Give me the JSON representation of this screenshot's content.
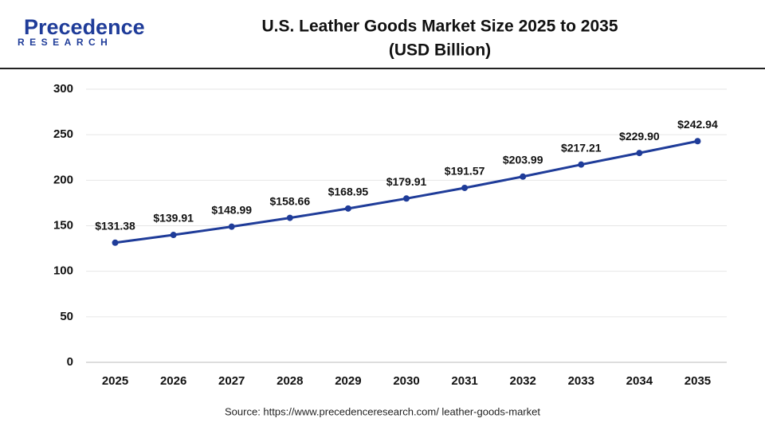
{
  "logo": {
    "name": "Precedence",
    "tagline": "RESEARCH"
  },
  "chart_data": {
    "type": "line",
    "title": "U.S. Leather Goods Market Size 2025 to 2035",
    "subtitle": "(USD Billion)",
    "categories": [
      "2025",
      "2026",
      "2027",
      "2028",
      "2029",
      "2030",
      "2031",
      "2032",
      "2033",
      "2034",
      "2035"
    ],
    "series": [
      {
        "name": "U.S. Leather Goods Market Size",
        "color": "#1f3c99",
        "values": [
          131.38,
          139.91,
          148.99,
          158.66,
          168.95,
          179.91,
          191.57,
          203.99,
          217.21,
          229.9,
          242.94
        ],
        "value_labels": [
          "$131.38",
          "$139.91",
          "$148.99",
          "$158.66",
          "$168.95",
          "$179.91",
          "$191.57",
          "$203.99",
          "$217.21",
          "$229.90",
          "$242.94"
        ]
      }
    ],
    "ylim": [
      0,
      300
    ],
    "yticks": [
      0,
      50,
      100,
      150,
      200,
      250,
      300
    ],
    "grid": true,
    "source": "Source: https://www.precedenceresearch.com/ leather-goods-market"
  }
}
